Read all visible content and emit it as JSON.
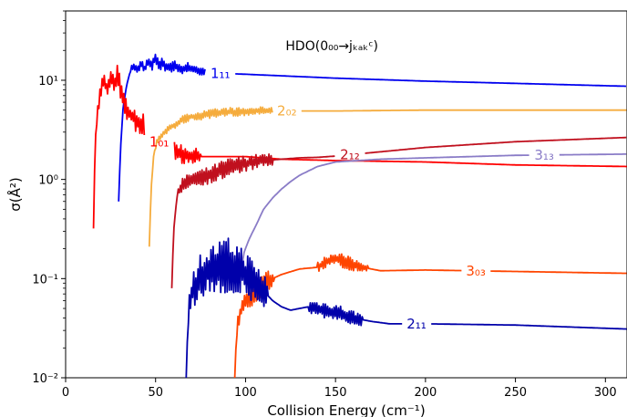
{
  "chart_data": {
    "type": "line",
    "title": "",
    "xlabel": "Collision Energy (cm⁻¹)",
    "ylabel": "σ(Å²)",
    "xlim": [
      0,
      312
    ],
    "ylim": [
      0.01,
      50
    ],
    "yscale": "log",
    "grid": false,
    "x_ticks": [
      0,
      50,
      100,
      150,
      200,
      250,
      300
    ],
    "x_tick_labels": [
      "0",
      "50",
      "100",
      "150",
      "200",
      "250",
      "300"
    ],
    "y_ticks": [
      0.01,
      0.1,
      1,
      10
    ],
    "y_tick_labels": [
      "10⁻²",
      "10⁻¹",
      "10⁰",
      "10¹"
    ],
    "annotation": {
      "text": "HDO(0₀₀→jₖₐₖᶜ)",
      "x": 148,
      "y": 20
    },
    "series": [
      {
        "name": "1₁₁",
        "color": "#0000ee",
        "label_x": 86,
        "points": [
          [
            29.5,
            0.6
          ],
          [
            30.5,
            2.0
          ],
          [
            32,
            5.5
          ],
          [
            34,
            9
          ],
          [
            36,
            12.5
          ],
          [
            38,
            14
          ],
          [
            40,
            12.5
          ],
          [
            42,
            15
          ],
          [
            44,
            13
          ],
          [
            46,
            16
          ],
          [
            48,
            14
          ],
          [
            50,
            17
          ],
          [
            52,
            14
          ],
          [
            54,
            15
          ],
          [
            56,
            13.5
          ],
          [
            60,
            14
          ],
          [
            64,
            13
          ],
          [
            68,
            13.5
          ],
          [
            72,
            12.8
          ],
          [
            76,
            12.3
          ],
          [
            80,
            12
          ],
          [
            84,
            11.8
          ],
          [
            100,
            11.5
          ],
          [
            150,
            10.5
          ],
          [
            200,
            9.8
          ],
          [
            250,
            9.3
          ],
          [
            312,
            8.7
          ]
        ],
        "jitter": [
          [
            36,
            80,
            0.06
          ]
        ]
      },
      {
        "name": "2₀₂",
        "color": "#f5ac3d",
        "label_x": 123,
        "points": [
          [
            46.5,
            0.21
          ],
          [
            47.5,
            0.8
          ],
          [
            49,
            1.8
          ],
          [
            51,
            2.5
          ],
          [
            55,
            3
          ],
          [
            60,
            3.5
          ],
          [
            65,
            4
          ],
          [
            70,
            4.3
          ],
          [
            80,
            4.5
          ],
          [
            90,
            4.8
          ],
          [
            100,
            4.8
          ],
          [
            110,
            5
          ],
          [
            118,
            4.9
          ],
          [
            130,
            4.9
          ],
          [
            150,
            4.9
          ],
          [
            200,
            5
          ],
          [
            250,
            5
          ],
          [
            312,
            5
          ]
        ],
        "jitter": [
          [
            50,
            115,
            0.05
          ]
        ]
      },
      {
        "name": "1₀₁",
        "color": "#ff0000",
        "label_x": 52,
        "points": [
          [
            15.5,
            0.32
          ],
          [
            16,
            1.2
          ],
          [
            17,
            3.5
          ],
          [
            19,
            7
          ],
          [
            21,
            10
          ],
          [
            23,
            8
          ],
          [
            25,
            11
          ],
          [
            27,
            9
          ],
          [
            29,
            12
          ],
          [
            31,
            7
          ],
          [
            33,
            5.5
          ],
          [
            36,
            4.5
          ],
          [
            40,
            3.8
          ],
          [
            44,
            3.3
          ],
          [
            48,
            2.7
          ],
          [
            52,
            2.4
          ],
          [
            56,
            2.2
          ],
          [
            60,
            2.0
          ],
          [
            65,
            1.8
          ],
          [
            70,
            1.7
          ],
          [
            80,
            1.7
          ],
          [
            90,
            1.7
          ],
          [
            100,
            1.7
          ],
          [
            120,
            1.6
          ],
          [
            150,
            1.55
          ],
          [
            200,
            1.5
          ],
          [
            250,
            1.4
          ],
          [
            312,
            1.35
          ]
        ],
        "jitter": [
          [
            16,
            75,
            0.13
          ]
        ]
      },
      {
        "name": "2₁₂",
        "color": "#c0101e",
        "label_x": 158,
        "points": [
          [
            59,
            0.08
          ],
          [
            60,
            0.3
          ],
          [
            62,
            0.7
          ],
          [
            65,
            0.9
          ],
          [
            70,
            1
          ],
          [
            80,
            1.1
          ],
          [
            90,
            1.3
          ],
          [
            100,
            1.45
          ],
          [
            110,
            1.55
          ],
          [
            120,
            1.6
          ],
          [
            130,
            1.65
          ],
          [
            140,
            1.67
          ],
          [
            150,
            1.72
          ],
          [
            175,
            1.9
          ],
          [
            200,
            2.1
          ],
          [
            250,
            2.4
          ],
          [
            312,
            2.65
          ]
        ],
        "jitter": [
          [
            62,
            115,
            0.1
          ]
        ]
      },
      {
        "name": "3₁₃",
        "color": "#8a7cc7",
        "label_x": 266,
        "points": [
          [
            98,
            0.13
          ],
          [
            99,
            0.18
          ],
          [
            102,
            0.25
          ],
          [
            106,
            0.35
          ],
          [
            110,
            0.5
          ],
          [
            115,
            0.65
          ],
          [
            120,
            0.8
          ],
          [
            125,
            0.95
          ],
          [
            130,
            1.1
          ],
          [
            140,
            1.35
          ],
          [
            150,
            1.5
          ],
          [
            175,
            1.6
          ],
          [
            200,
            1.65
          ],
          [
            250,
            1.75
          ],
          [
            312,
            1.8
          ]
        ],
        "jitter": []
      },
      {
        "name": "3₀₃",
        "color": "#ff4500",
        "label_x": 228,
        "points": [
          [
            94,
            0.01
          ],
          [
            95,
            0.03
          ],
          [
            97,
            0.045
          ],
          [
            100,
            0.06
          ],
          [
            105,
            0.075
          ],
          [
            110,
            0.09
          ],
          [
            115,
            0.1
          ],
          [
            120,
            0.11
          ],
          [
            130,
            0.125
          ],
          [
            140,
            0.13
          ],
          [
            145,
            0.15
          ],
          [
            150,
            0.16
          ],
          [
            158,
            0.14
          ],
          [
            165,
            0.13
          ],
          [
            175,
            0.12
          ],
          [
            200,
            0.122
          ],
          [
            250,
            0.118
          ],
          [
            312,
            0.113
          ]
        ],
        "jitter": [
          [
            95,
            116,
            0.14
          ],
          [
            140,
            168,
            0.08
          ]
        ]
      },
      {
        "name": "2₁₁",
        "color": "#0000aa",
        "label_x": 195,
        "points": [
          [
            67,
            0.01
          ],
          [
            68,
            0.04
          ],
          [
            70,
            0.07
          ],
          [
            75,
            0.11
          ],
          [
            80,
            0.12
          ],
          [
            85,
            0.13
          ],
          [
            90,
            0.13
          ],
          [
            95,
            0.13
          ],
          [
            100,
            0.11
          ],
          [
            105,
            0.09
          ],
          [
            110,
            0.075
          ],
          [
            115,
            0.06
          ],
          [
            120,
            0.052
          ],
          [
            125,
            0.048
          ],
          [
            130,
            0.05
          ],
          [
            135,
            0.052
          ],
          [
            140,
            0.05
          ],
          [
            150,
            0.045
          ],
          [
            160,
            0.04
          ],
          [
            170,
            0.037
          ],
          [
            180,
            0.035
          ],
          [
            200,
            0.035
          ],
          [
            250,
            0.034
          ],
          [
            312,
            0.031
          ]
        ],
        "jitter": [
          [
            68,
            112,
            0.3
          ],
          [
            135,
            165,
            0.1
          ]
        ]
      }
    ]
  }
}
